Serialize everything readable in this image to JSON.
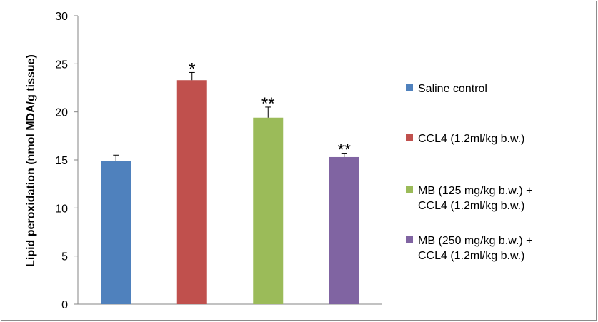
{
  "chart_data": {
    "type": "bar",
    "title": "",
    "xlabel": "",
    "ylabel": "Lipid peroxidation (nmol MDA/g tissue)",
    "ylim": [
      0,
      30
    ],
    "yticks": [
      0,
      5,
      10,
      15,
      20,
      25,
      30
    ],
    "grid": false,
    "legend_position": "right",
    "series": [
      {
        "name": [
          "Saline control"
        ],
        "value": 14.9,
        "error": 0.6,
        "significance": "",
        "color": "#4F81BD"
      },
      {
        "name": [
          "CCL4   (1.2ml/kg b.w.)"
        ],
        "value": 23.3,
        "error": 0.8,
        "significance": "*",
        "color": "#C0504D"
      },
      {
        "name": [
          "MB (125 mg/kg b.w.) +",
          "CCL4   (1.2ml/kg b.w.)"
        ],
        "value": 19.4,
        "error": 1.1,
        "significance": "**",
        "color": "#9BBB59"
      },
      {
        "name": [
          "MB  (250 mg/kg b.w.) +",
          "CCL4   (1.2ml/kg b.w.)"
        ],
        "value": 15.3,
        "error": 0.4,
        "significance": "**",
        "color": "#8064A2"
      }
    ]
  }
}
